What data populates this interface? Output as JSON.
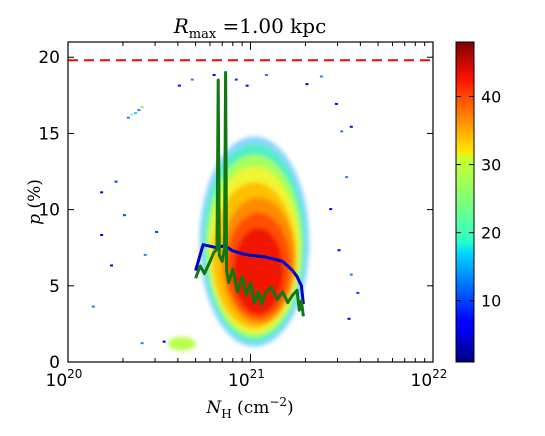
{
  "chart_data": {
    "type": "heatmap",
    "title_main": "R",
    "title_sub": "max",
    "title_rest": " =1.00 kpc",
    "xlabel": {
      "main": "N",
      "sub": "H",
      "unit_open": " (cm",
      "unit_sup": "−2",
      "unit_close": ")"
    },
    "ylabel": {
      "main": "p",
      "unit": " (%)"
    },
    "x_scale": "log",
    "xlim": [
      1e+20,
      1e+22
    ],
    "ylim": [
      0,
      21
    ],
    "x_ticks": [
      {
        "base": "10",
        "exp": "20",
        "value": 1e+20
      },
      {
        "base": "10",
        "exp": "21",
        "value": 1e+21
      },
      {
        "base": "10",
        "exp": "22",
        "value": 1e+22
      }
    ],
    "y_ticks": [
      "0",
      "5",
      "10",
      "15",
      "20"
    ],
    "reference_line": {
      "y": 19.8,
      "style": "dashed",
      "color": "#ff0000"
    },
    "colorbar": {
      "min": 1,
      "max": 48,
      "ticks": [
        "10",
        "20",
        "30",
        "40"
      ],
      "colormap": "jet"
    },
    "series": [
      {
        "color": "#0000cc",
        "x": [
          5e+20,
          5.5e+20,
          6e+20,
          6.5e+20,
          7e+20,
          7.5e+20,
          8e+20,
          9e+20,
          1e+21,
          1.1e+21,
          1.2e+21,
          1.3e+21,
          1.4e+21,
          1.5e+21,
          1.6e+21,
          1.7e+21,
          1.8e+21,
          1.9e+21,
          1.95e+21
        ],
        "y": [
          6.0,
          7.7,
          7.6,
          7.5,
          7.6,
          7.5,
          7.3,
          7.1,
          7.0,
          6.95,
          6.9,
          6.8,
          6.7,
          6.6,
          6.3,
          6.0,
          5.6,
          5.0,
          3.8
        ]
      },
      {
        "color": "#117711",
        "x": [
          5e+20,
          5.3e+20,
          5.6e+20,
          6e+20,
          6.3e+20,
          6.55e+20,
          6.65e+20,
          6.75e+20,
          7e+20,
          7.2e+20,
          7.3e+20,
          7.4e+20,
          7.6e+20,
          8e+20,
          8.5e+20,
          9e+20,
          9.5e+20,
          1e+21,
          1.05e+21,
          1.1e+21,
          1.15e+21,
          1.2e+21,
          1.3e+21,
          1.4e+21,
          1.5e+21,
          1.6e+21,
          1.7e+21,
          1.8e+21,
          1.85e+21,
          1.9e+21,
          1.95e+21
        ],
        "y": [
          5.5,
          6.3,
          5.8,
          6.6,
          7.2,
          7.4,
          18.5,
          7.0,
          6.6,
          7.4,
          19.0,
          6.0,
          5.2,
          6.1,
          4.6,
          5.6,
          4.4,
          5.2,
          3.9,
          4.6,
          3.8,
          4.5,
          4.9,
          4.1,
          4.6,
          3.9,
          4.4,
          4.7,
          3.4,
          4.0,
          3.0
        ]
      }
    ]
  }
}
